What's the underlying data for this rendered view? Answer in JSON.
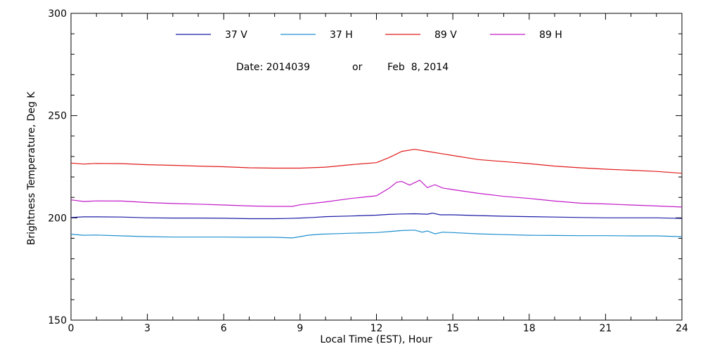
{
  "chart_data": {
    "type": "line",
    "title": "",
    "annotation": {
      "date_label": "Date: 2014039",
      "or_label": "or",
      "date_text": "Feb  8, 2014"
    },
    "xlabel": "Local Time (EST), Hour",
    "ylabel": "Brightness Temperature, Deg K",
    "xlim": [
      0,
      24
    ],
    "ylim": [
      150,
      300
    ],
    "xticks": [
      0,
      3,
      6,
      9,
      12,
      15,
      18,
      21,
      24
    ],
    "yticks": [
      150,
      200,
      250,
      300
    ],
    "xtick_labels": [
      "0",
      "3",
      "6",
      "9",
      "12",
      "15",
      "18",
      "21",
      "24"
    ],
    "ytick_labels": [
      "150",
      "200",
      "250",
      "300"
    ],
    "grid": false,
    "legend_position": "top",
    "series": [
      {
        "name": "37 V",
        "color": "#1a1aa6",
        "x": [
          0,
          0.5,
          1,
          2,
          3,
          4,
          5,
          6,
          7,
          8,
          8.5,
          9,
          9.5,
          10,
          11,
          12,
          12.5,
          13,
          13.5,
          14,
          14.2,
          14.5,
          15,
          16,
          17,
          18,
          19,
          20,
          21,
          22,
          23,
          24
        ],
        "y": [
          200.2,
          200.5,
          200.5,
          200.4,
          200.0,
          199.9,
          199.9,
          199.8,
          199.6,
          199.6,
          199.7,
          199.9,
          200.2,
          200.6,
          200.9,
          201.3,
          201.7,
          201.9,
          202.0,
          201.8,
          202.3,
          201.5,
          201.5,
          201.1,
          200.8,
          200.6,
          200.4,
          200.2,
          200.0,
          200.0,
          200.0,
          199.7
        ]
      },
      {
        "name": "37 H",
        "color": "#1e8fcf",
        "x": [
          0,
          0.5,
          1,
          2,
          3,
          4,
          5,
          6,
          7,
          8,
          8.7,
          9,
          9.3,
          9.8,
          10.5,
          11,
          12,
          12.5,
          13,
          13.5,
          13.8,
          14,
          14.3,
          14.6,
          15,
          16,
          17,
          18,
          19,
          20,
          21,
          22,
          23,
          24
        ],
        "y": [
          192.0,
          191.5,
          191.6,
          191.2,
          190.8,
          190.6,
          190.6,
          190.6,
          190.5,
          190.5,
          190.2,
          190.8,
          191.5,
          192.0,
          192.3,
          192.5,
          192.8,
          193.3,
          193.8,
          194.0,
          193.0,
          193.6,
          192.2,
          193.0,
          192.8,
          192.2,
          191.8,
          191.5,
          191.4,
          191.3,
          191.3,
          191.2,
          191.2,
          190.8
        ]
      },
      {
        "name": "89 V",
        "color": "#e11a1a",
        "x": [
          0,
          0.5,
          1,
          2,
          3,
          4,
          5,
          6,
          7,
          8,
          9,
          10,
          11,
          12,
          12.5,
          13,
          13.5,
          14,
          15,
          16,
          17,
          18,
          19,
          20,
          21,
          22,
          23,
          24
        ],
        "y": [
          226.8,
          226.3,
          226.6,
          226.5,
          226.0,
          225.7,
          225.3,
          225.0,
          224.5,
          224.3,
          224.3,
          224.8,
          226.0,
          227.0,
          229.5,
          232.5,
          233.5,
          232.5,
          230.5,
          228.5,
          227.5,
          226.5,
          225.3,
          224.5,
          223.8,
          223.3,
          222.7,
          221.8
        ]
      },
      {
        "name": "89 H",
        "color": "#c21ac8",
        "x": [
          0,
          0.5,
          1,
          2,
          3,
          4,
          5,
          6,
          7,
          8,
          8.7,
          9,
          10,
          11,
          12,
          12.5,
          12.8,
          13,
          13.3,
          13.5,
          13.7,
          14,
          14.3,
          14.6,
          15,
          16,
          17,
          18,
          19,
          20,
          21,
          22,
          23,
          24
        ],
        "y": [
          208.8,
          208.0,
          208.3,
          208.2,
          207.5,
          207.0,
          206.7,
          206.3,
          205.8,
          205.6,
          205.6,
          206.4,
          207.8,
          209.5,
          210.8,
          214.5,
          217.5,
          217.8,
          216.0,
          217.2,
          218.4,
          214.8,
          216.2,
          214.6,
          213.8,
          212.0,
          210.5,
          209.5,
          208.2,
          207.2,
          206.8,
          206.3,
          205.8,
          205.3
        ]
      }
    ]
  }
}
